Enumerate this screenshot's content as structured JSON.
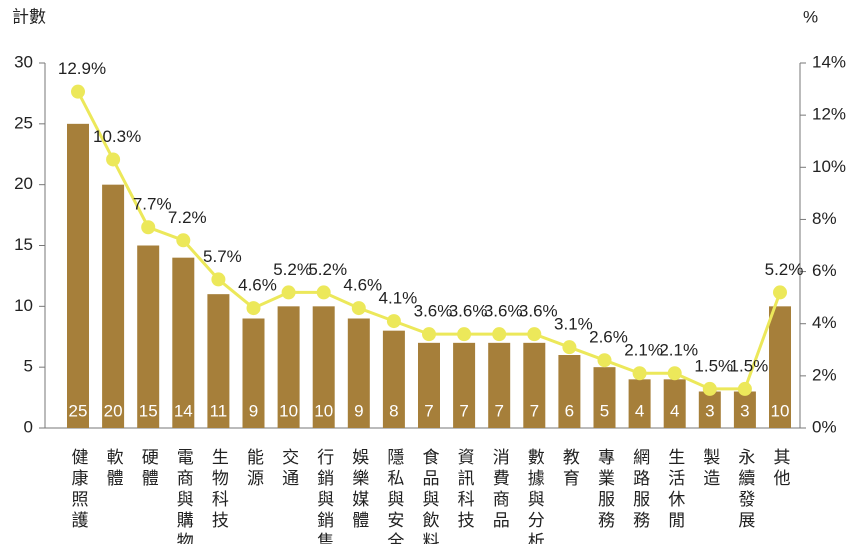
{
  "chart_data": {
    "type": "bar-line",
    "ylabel": "計數",
    "y2label": "%",
    "categories": [
      "健康照護",
      "軟體",
      "硬體",
      "電商與購物",
      "生物科技",
      "能源",
      "交通",
      "行銷與銷售",
      "娛樂媒體",
      "隱私與安全",
      "食品與飲料",
      "資訊科技",
      "消費商品",
      "數據與分析",
      "教育",
      "專業服務",
      "網路服務",
      "生活休閒",
      "製造",
      "永續發展",
      "其他"
    ],
    "series": [
      {
        "color": "#a67f3a",
        "values": [
          25,
          20,
          15,
          14,
          11,
          9,
          10,
          10,
          9,
          8,
          7,
          7,
          7,
          7,
          6,
          5,
          4,
          4,
          3,
          3,
          10
        ]
      },
      {
        "color": "#ece85a",
        "axis": "y2",
        "values": [
          12.9,
          10.3,
          7.7,
          7.2,
          5.7,
          4.6,
          5.2,
          5.2,
          4.6,
          4.1,
          3.6,
          3.6,
          3.6,
          3.6,
          3.1,
          2.6,
          2.1,
          2.1,
          1.5,
          1.5,
          5.2
        ],
        "value_labels": [
          "12.9%",
          "10.3%",
          "7.7%",
          "7.2%",
          "5.7%",
          "4.6%",
          "5.2%",
          "5.2%",
          "4.6%",
          "4.1%",
          "3.6%",
          "3.6%",
          "3.6%",
          "3.6%",
          "3.1%",
          "2.6%",
          "2.1%",
          "2.1%",
          "1.5%",
          "1.5%",
          "5.2%"
        ]
      }
    ],
    "ylim": [
      0,
      30
    ],
    "yticks": [
      0,
      5,
      10,
      15,
      20,
      25,
      30
    ],
    "y2lim": [
      0,
      14
    ],
    "y2ticks": [
      {
        "value": 0,
        "label": "0%"
      },
      {
        "value": 2,
        "label": "2%"
      },
      {
        "value": 4,
        "label": "4%"
      },
      {
        "value": 6,
        "label": "6%"
      },
      {
        "value": 8,
        "label": "8%"
      },
      {
        "value": 10,
        "label": "10%"
      },
      {
        "value": 12,
        "label": "12%"
      },
      {
        "value": 14,
        "label": "14%"
      }
    ]
  }
}
